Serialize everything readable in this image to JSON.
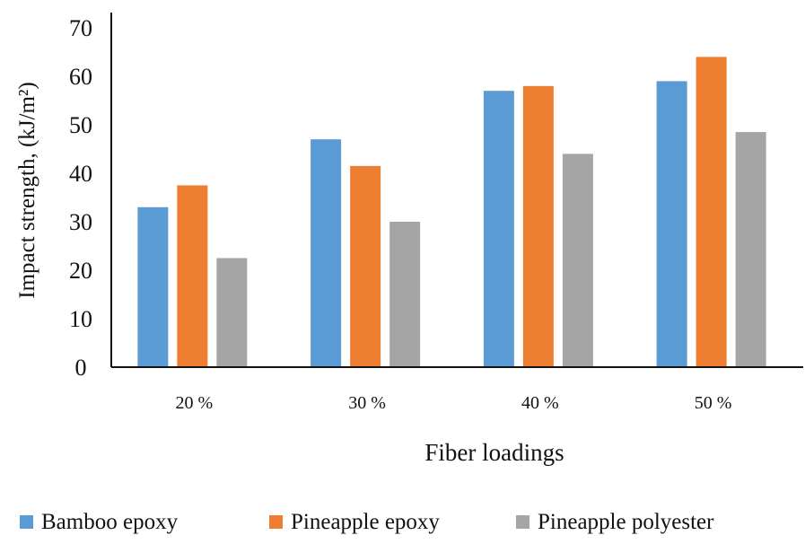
{
  "chart_data": {
    "type": "bar",
    "categories": [
      "20 %",
      "30 %",
      "40 %",
      "50 %"
    ],
    "series": [
      {
        "name": "Bamboo epoxy",
        "values": [
          33,
          47,
          57,
          59
        ],
        "color": "#5B9BD5"
      },
      {
        "name": "Pineapple epoxy",
        "values": [
          37.5,
          41.5,
          58,
          64
        ],
        "color": "#ED7D31"
      },
      {
        "name": "Pineapple polyester",
        "values": [
          22.5,
          30,
          44,
          48.5
        ],
        "color": "#A5A5A5"
      }
    ],
    "title": "",
    "xlabel": "Fiber loadings",
    "ylabel": "Impact strength, (kJ/m²)",
    "ylim": [
      0,
      70
    ],
    "yticks": [
      "0",
      "10",
      "20",
      "30",
      "40",
      "50",
      "60",
      "70"
    ],
    "grid": false,
    "legend": "bottom"
  }
}
